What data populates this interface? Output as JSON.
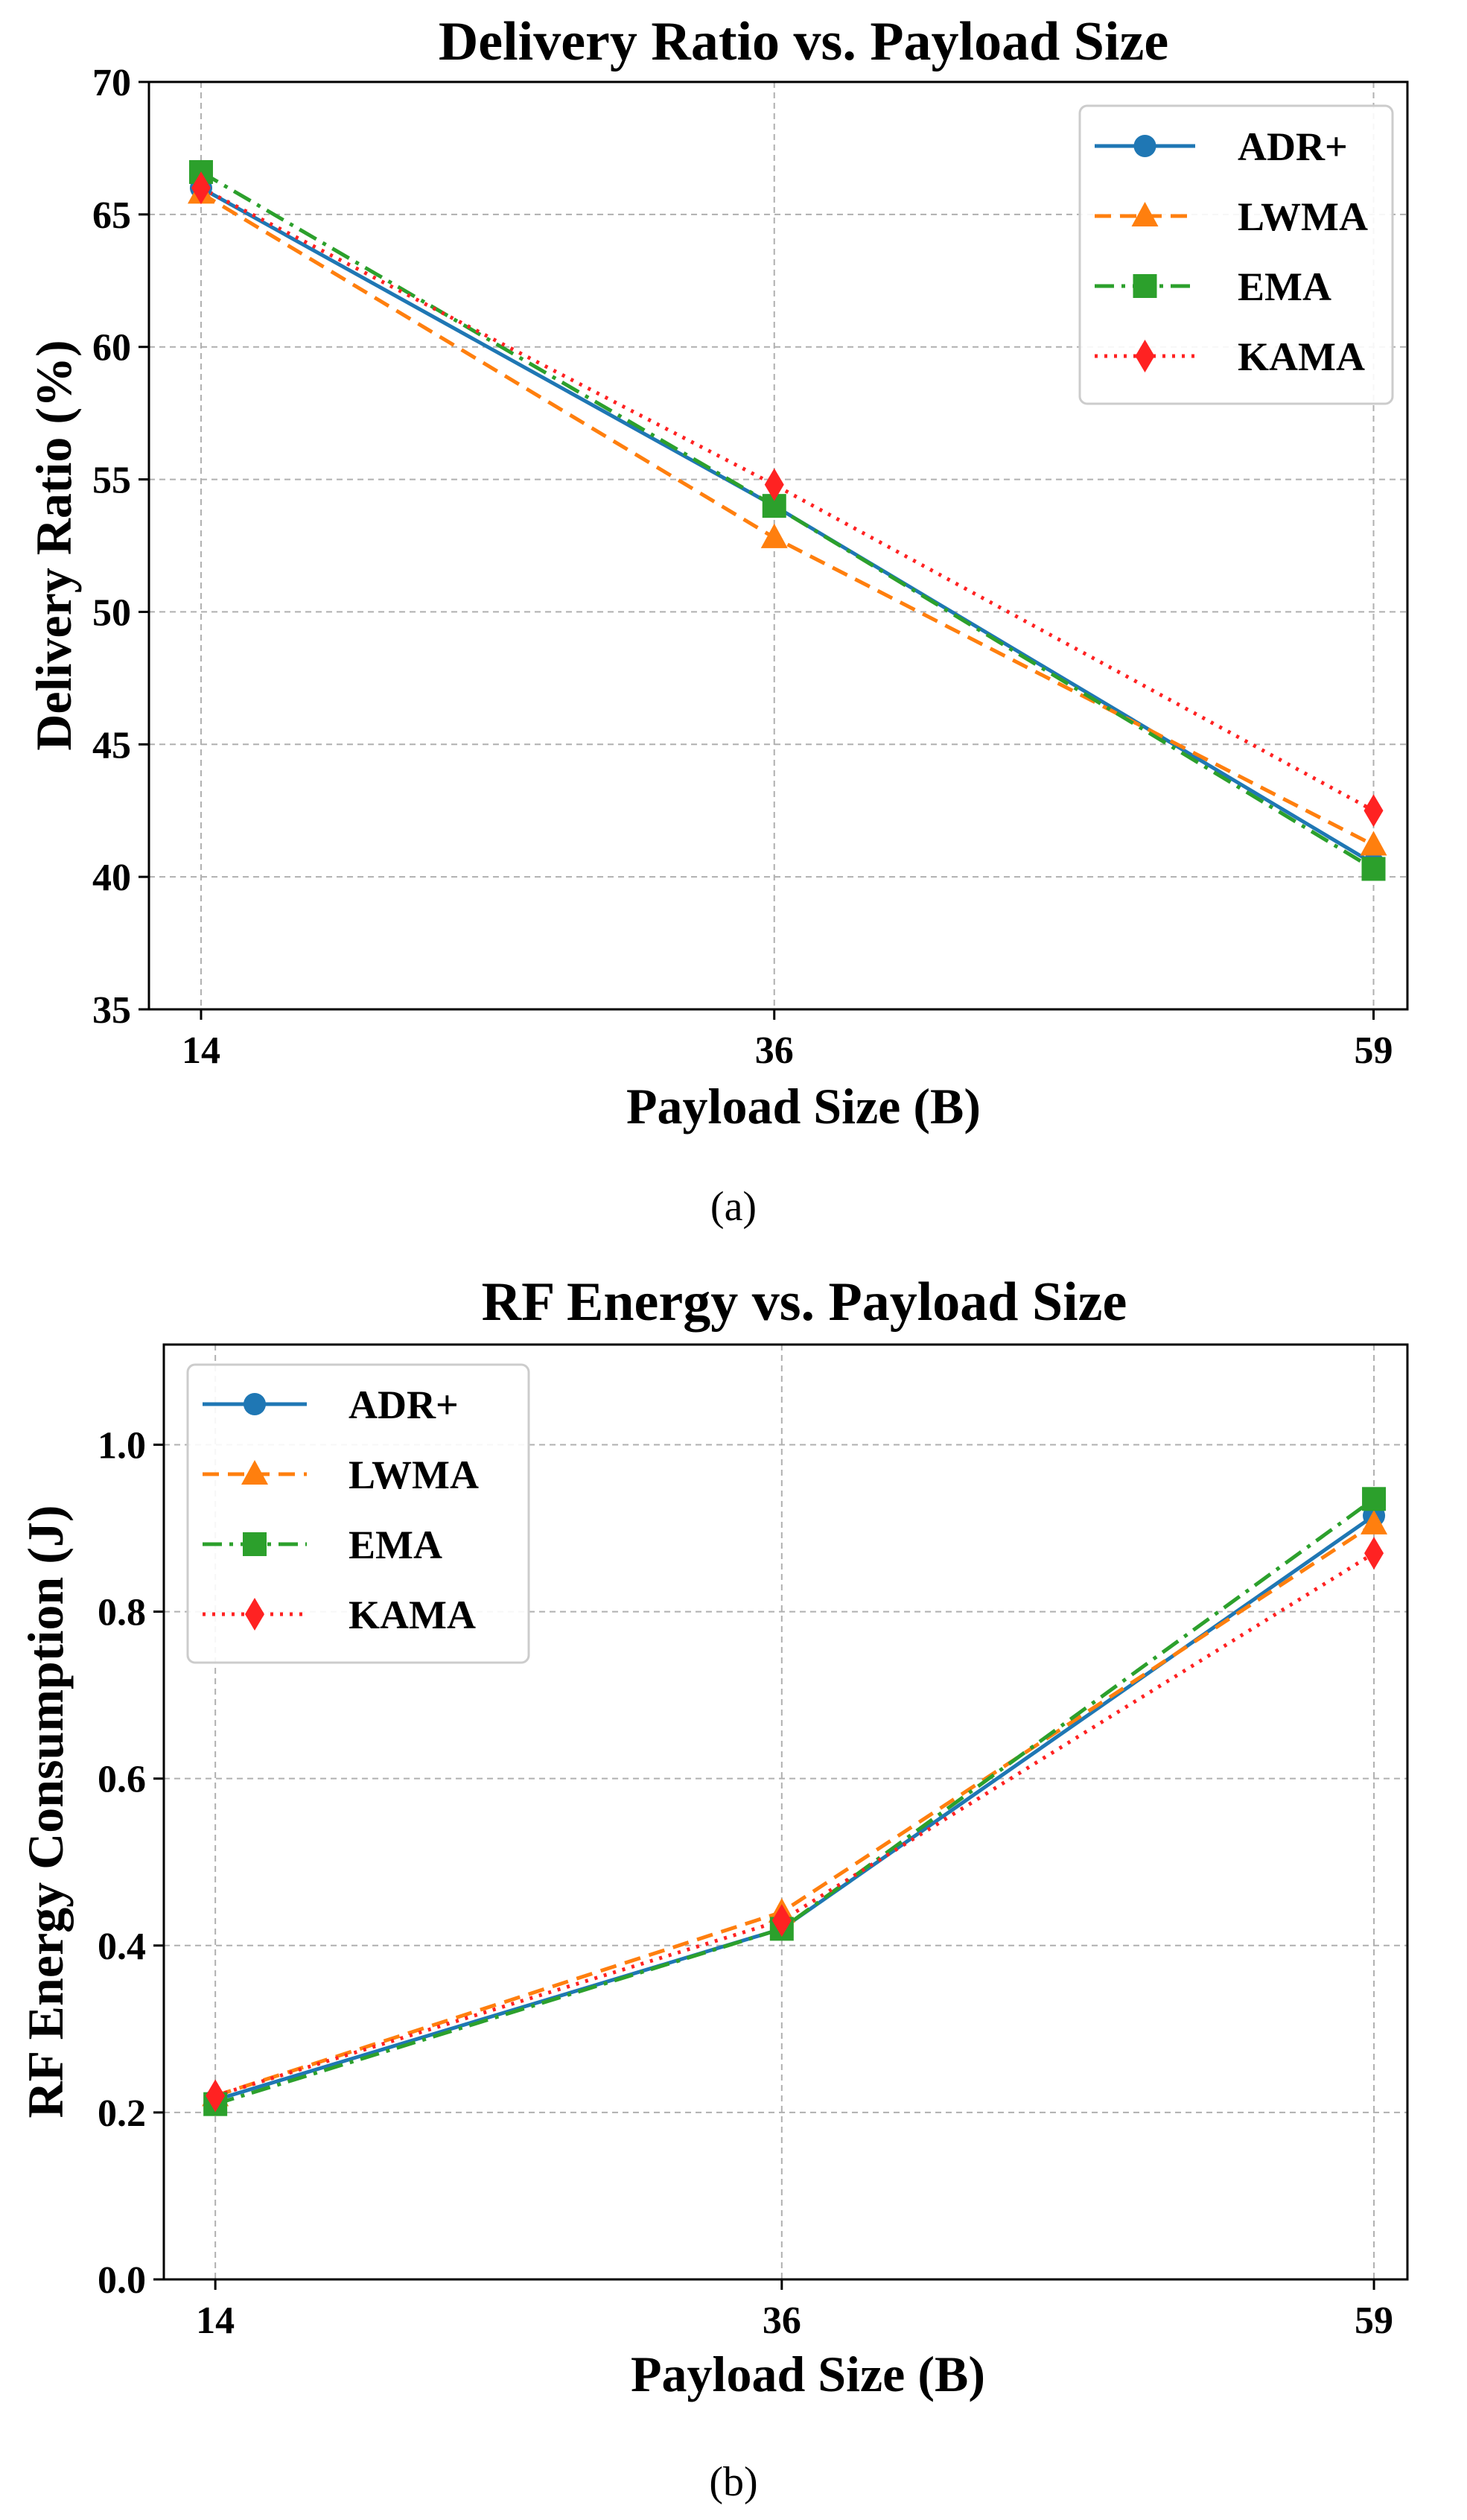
{
  "chart_data": [
    {
      "type": "line",
      "panel": "a",
      "caption": "(a)",
      "title": "Delivery Ratio vs. Payload Size",
      "xlabel": "Payload Size (B)",
      "ylabel": "Delivery Ratio (%)",
      "x": [
        14,
        36,
        59
      ],
      "x_tick_labels": [
        "14",
        "36",
        "59"
      ],
      "xlim": [
        12,
        60.3
      ],
      "ylim": [
        35,
        70
      ],
      "y_ticks": [
        35,
        40,
        45,
        50,
        55,
        60,
        65,
        70
      ],
      "y_tick_labels": [
        "35",
        "40",
        "45",
        "50",
        "55",
        "60",
        "65",
        "70"
      ],
      "grid": true,
      "legend_position": "top-right",
      "series": [
        {
          "name": "ADR+",
          "color": "#1f77b4",
          "marker": "circle",
          "line": "solid",
          "values": [
            66.0,
            54.0,
            40.5
          ]
        },
        {
          "name": "LWMA",
          "color": "#ff7f0e",
          "marker": "triangle",
          "line": "dashed",
          "values": [
            65.8,
            52.8,
            41.2
          ]
        },
        {
          "name": "EMA",
          "color": "#2ca02c",
          "marker": "square",
          "line": "dashdot",
          "values": [
            66.6,
            54.0,
            40.3
          ]
        },
        {
          "name": "KAMA",
          "color": "#ff2222",
          "marker": "diamond",
          "line": "dotted",
          "values": [
            66.0,
            54.8,
            42.5
          ]
        }
      ]
    },
    {
      "type": "line",
      "panel": "b",
      "caption": "(b)",
      "title": "RF Energy vs. Payload Size",
      "xlabel": "Payload Size (B)",
      "ylabel": "RF Energy Consumption (J)",
      "x": [
        14,
        36,
        59
      ],
      "x_tick_labels": [
        "14",
        "36",
        "59"
      ],
      "xlim": [
        12,
        60.3
      ],
      "ylim": [
        0.0,
        1.12
      ],
      "y_ticks": [
        0.0,
        0.2,
        0.4,
        0.6,
        0.8,
        1.0
      ],
      "y_tick_labels": [
        "0.0",
        "0.2",
        "0.4",
        "0.6",
        "0.8",
        "1.0"
      ],
      "grid": true,
      "legend_position": "top-left",
      "series": [
        {
          "name": "ADR+",
          "color": "#1f77b4",
          "marker": "circle",
          "line": "solid",
          "values": [
            0.215,
            0.42,
            0.915
          ]
        },
        {
          "name": "LWMA",
          "color": "#ff7f0e",
          "marker": "triangle",
          "line": "dashed",
          "values": [
            0.22,
            0.44,
            0.905
          ]
        },
        {
          "name": "EMA",
          "color": "#2ca02c",
          "marker": "square",
          "line": "dashdot",
          "values": [
            0.21,
            0.42,
            0.935
          ]
        },
        {
          "name": "KAMA",
          "color": "#ff2222",
          "marker": "diamond",
          "line": "dotted",
          "values": [
            0.22,
            0.43,
            0.87
          ]
        }
      ]
    }
  ]
}
